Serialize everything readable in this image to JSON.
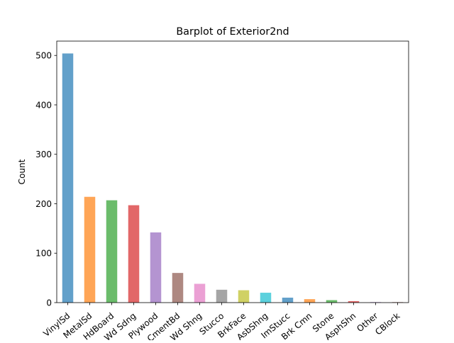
{
  "chart_data": {
    "type": "bar",
    "title": "Barplot of Exterior2nd",
    "xlabel": "",
    "ylabel": "Count",
    "categories": [
      "VinylSd",
      "MetalSd",
      "HdBoard",
      "Wd Sdng",
      "Plywood",
      "CmentBd",
      "Wd Shng",
      "Stucco",
      "BrkFace",
      "AsbShng",
      "ImStucc",
      "Brk Cmn",
      "Stone",
      "AsphShn",
      "Other",
      "CBlock"
    ],
    "values": [
      504,
      214,
      207,
      197,
      142,
      60,
      38,
      26,
      25,
      20,
      10,
      7,
      5,
      3,
      1,
      1
    ],
    "colors": [
      "#1f77b4",
      "#ff7f0e",
      "#2ca02c",
      "#d62728",
      "#9467bd",
      "#8c564b",
      "#e377c2",
      "#7f7f7f",
      "#bcbd22",
      "#17becf",
      "#1f77b4",
      "#ff7f0e",
      "#2ca02c",
      "#d62728",
      "#9467bd",
      "#8c564b"
    ],
    "bar_opacity": 0.7,
    "ylim": [
      0,
      529
    ],
    "yticks": [
      0,
      100,
      200,
      300,
      400,
      500
    ],
    "grid": false,
    "xtick_rotation": 40
  }
}
